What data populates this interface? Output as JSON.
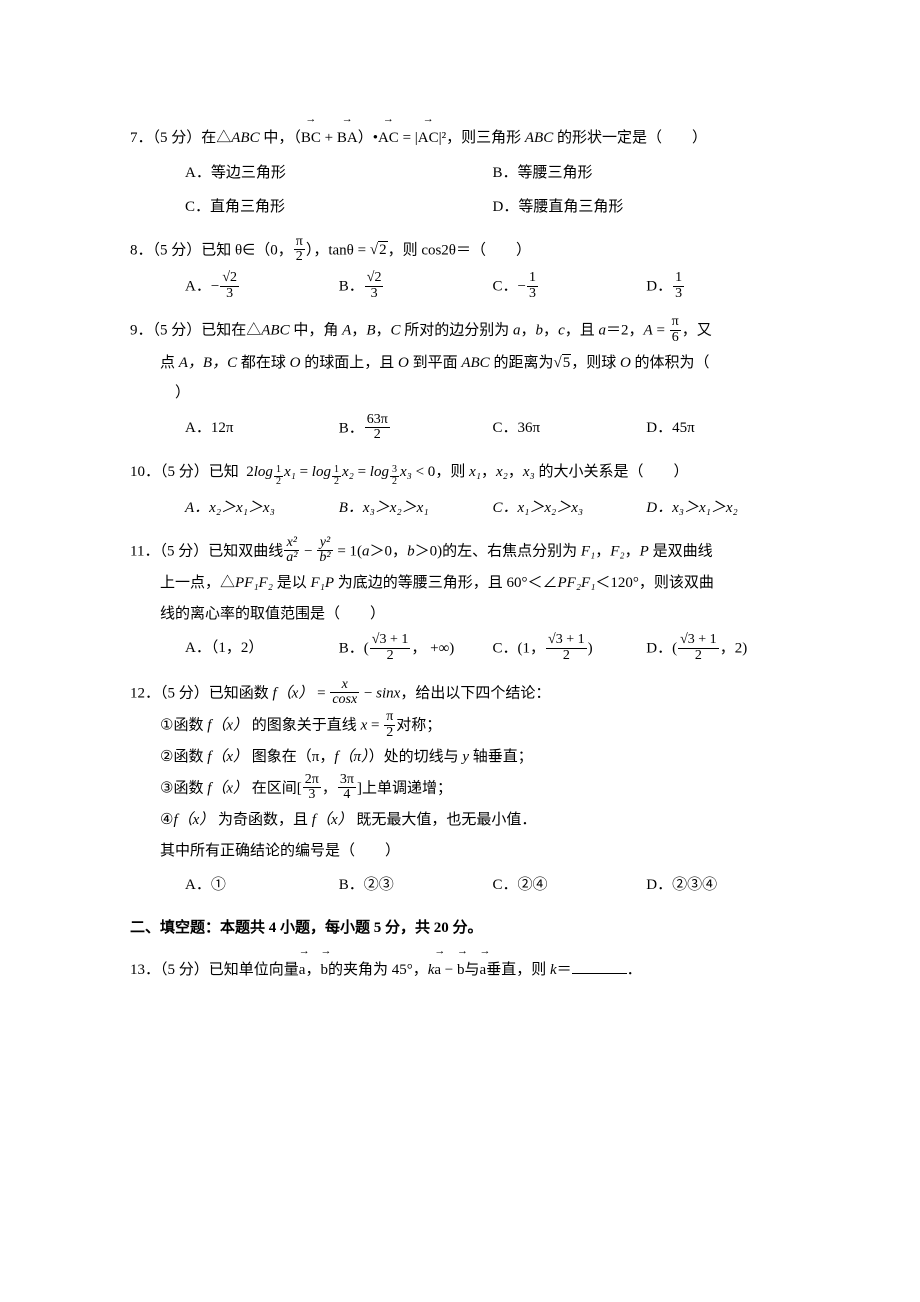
{
  "q7": {
    "prefix": "7．（5 分）在△",
    "abc": "ABC",
    "mid1": " 中，（",
    "vec1": "BC",
    "plus": " + ",
    "vec2": "BA",
    "mid2": "）•",
    "vec3": "AC",
    "mid3": " = |",
    "vec4": "AC",
    "mid4": "|²，则三角形 ",
    "abc2": "ABC",
    "tail": " 的形状一定是（　　）",
    "A": "A．等边三角形",
    "B": "B．等腰三角形",
    "C": "C．直角三角形",
    "D": "D．等腰直角三角形"
  },
  "q8": {
    "prefix": "8．（5 分）已知 θ∈（0，",
    "frac1_num": "π",
    "frac1_den": "2",
    "mid1": "），tanθ = ",
    "sqrt1": "2",
    "mid2": "，则 cos2θ＝（　　）",
    "A_pre": "A．",
    "A_sign": "−",
    "A_num": "√2",
    "A_den": "3",
    "B_pre": "B．",
    "B_num": "√2",
    "B_den": "3",
    "C_pre": "C．",
    "C_sign": "−",
    "C_num": "1",
    "C_den": "3",
    "D_pre": "D．",
    "D_num": "1",
    "D_den": "3"
  },
  "q9": {
    "prefix": "9．（5 分）已知在△",
    "abc": "ABC",
    "mid1": " 中，角 ",
    "A_": "A",
    "comma1": "，",
    "B_": "B",
    "comma2": "，",
    "C_": "C",
    "mid2": " 所对的边分别为 ",
    "a_": "a",
    "comma3": "，",
    "b_": "b",
    "comma4": "，",
    "c_": "c",
    "mid3": "，且 ",
    "a2": "a",
    "eq2": "＝2，",
    "Aeq": "A",
    "eqfrac": " = ",
    "frac_num": "π",
    "frac_den": "6",
    "tail1": "，又",
    "line2a": "点 ",
    "pts": "A，B，C",
    "line2b": " 都在球 ",
    "O1": "O",
    "line2c": " 的球面上，且 ",
    "O2": "O",
    "line2d": " 到平面 ",
    "abc2": "ABC",
    "line2e": " 的距离为",
    "sqrt5": "5",
    "line2f": "，则球 ",
    "O3": "O",
    "line2g": " 的体积为（",
    "line3": "　）",
    "A": "A．12π",
    "B_pre": "B．",
    "B_num": "63π",
    "B_den": "2",
    "C": "C．36π",
    "D": "D．45π"
  },
  "q10": {
    "prefix": "10．（5 分）已知",
    "expr_pre": "2",
    "log1": "log",
    "base1a": "1",
    "base1b": "2",
    "x1": "x₁",
    "eq1": " = ",
    "log2": "log",
    "base2a": "1",
    "base2b": "2",
    "x2": "x₂",
    "eq2": " = ",
    "log3": "log",
    "base3a": "3",
    "base3b": "2",
    "x3": "x₃",
    "lt0": " < 0",
    "mid": "，则 ",
    "x1n": "x₁",
    "comma1": "，",
    "x2n": "x₂",
    "comma2": "，",
    "x3n": "x₃",
    "tail": " 的大小关系是（　　）",
    "A": "A．x₂＞x₁＞x₃",
    "B": "B．x₃＞x₂＞x₁",
    "C": "C．x₁＞x₂＞x₃",
    "D": "D．x₃＞x₁＞x₂"
  },
  "q11": {
    "prefix": "11．（5 分）已知双曲线",
    "fr1_num": "x²",
    "fr1_den": "a²",
    "minus": " − ",
    "fr2_num": "y²",
    "fr2_den": "b²",
    "eq1": " = 1(",
    "a_": "a",
    "gt0a": "＞0，",
    "b_": "b",
    "gt0b": "＞0)",
    "mid1": "的左、右焦点分别为 ",
    "F1": "F₁",
    "comma": "，",
    "F2": "F₂",
    "mid2": "，",
    "P_": "P",
    "mid3": " 是双曲线",
    "line2a": "上一点，△",
    "PF1F2": "PF₁F₂",
    "line2b": " 是以 ",
    "F1P": "F₁P",
    "line2c": " 为底边的等腰三角形，且 60°＜∠",
    "PF2F1": "PF₂F₁",
    "line2d": "＜120°，则该双曲",
    "line3": "线的离心率的取值范围是（　　）",
    "A": "A．（1，2）",
    "B_pre": "B．",
    "B_open": "(",
    "B_num": "√3 + 1",
    "B_den": "2",
    "B_tail": "，  +∞)",
    "C_pre": "C．",
    "C_open": "(1，",
    "C_num": "√3 + 1",
    "C_den": "2",
    "C_close": ")",
    "D_pre": "D．",
    "D_open": "(",
    "D_num": "√3 + 1",
    "D_den": "2",
    "D_tail": "，2)"
  },
  "q12": {
    "prefix": "12．（5 分）已知函数 ",
    "fx": "f（x）",
    "eq": " = ",
    "fr_num": "x",
    "fr_den": "cosx",
    "minus": " − ",
    "sinx": "sinx",
    "tail": "，给出以下四个结论：",
    "s1a": "函数 ",
    "s1_fx": "f（x）",
    "s1b": " 的图象关于直线 ",
    "s1_x": "x",
    "s1c": " = ",
    "s1_num": "π",
    "s1_den": "2",
    "s1d": "对称；",
    "s2a": "函数 ",
    "s2_fx": "f（x）",
    "s2b": " 图象在（π，",
    "s2_fpi": "f（π）",
    "s2c": "）处的切线与 ",
    "s2_y": "y",
    "s2d": " 轴垂直；",
    "s3a": "函数 ",
    "s3_fx": "f（x）",
    "s3b": " 在区间[",
    "s3_n1": "2π",
    "s3_d1": "3",
    "s3_comma": "，",
    "s3_n2": "3π",
    "s3_d2": "4",
    "s3c": "]上单调递增；",
    "s4_fx": "f（x）",
    "s4a": " 为奇函数，且 ",
    "s4_fx2": "f（x）",
    "s4b": " 既无最大值，也无最小值．",
    "line_end": "其中所有正确结论的编号是（　　）",
    "A": "A．①",
    "B": "B．②③",
    "C": "C．②④",
    "D": "D．②③④",
    "circ1": "①",
    "circ2": "②",
    "circ3": "③",
    "circ4": "④"
  },
  "section2": "二、填空题：本题共 4 小题，每小题 5 分，共 20 分。",
  "q13": {
    "prefix": "13．（5 分）已知单位向量",
    "veca": "a",
    "comma": "，",
    "vecb": "b",
    "mid1": "的夹角为 45°，",
    "k": "k",
    "veca2": "a",
    "minus": " − ",
    "vecb2": "b",
    "mid2": "与",
    "veca3": "a",
    "mid3": "垂直，则 ",
    "kvar": "k",
    "eq": "＝",
    "period": "．"
  }
}
